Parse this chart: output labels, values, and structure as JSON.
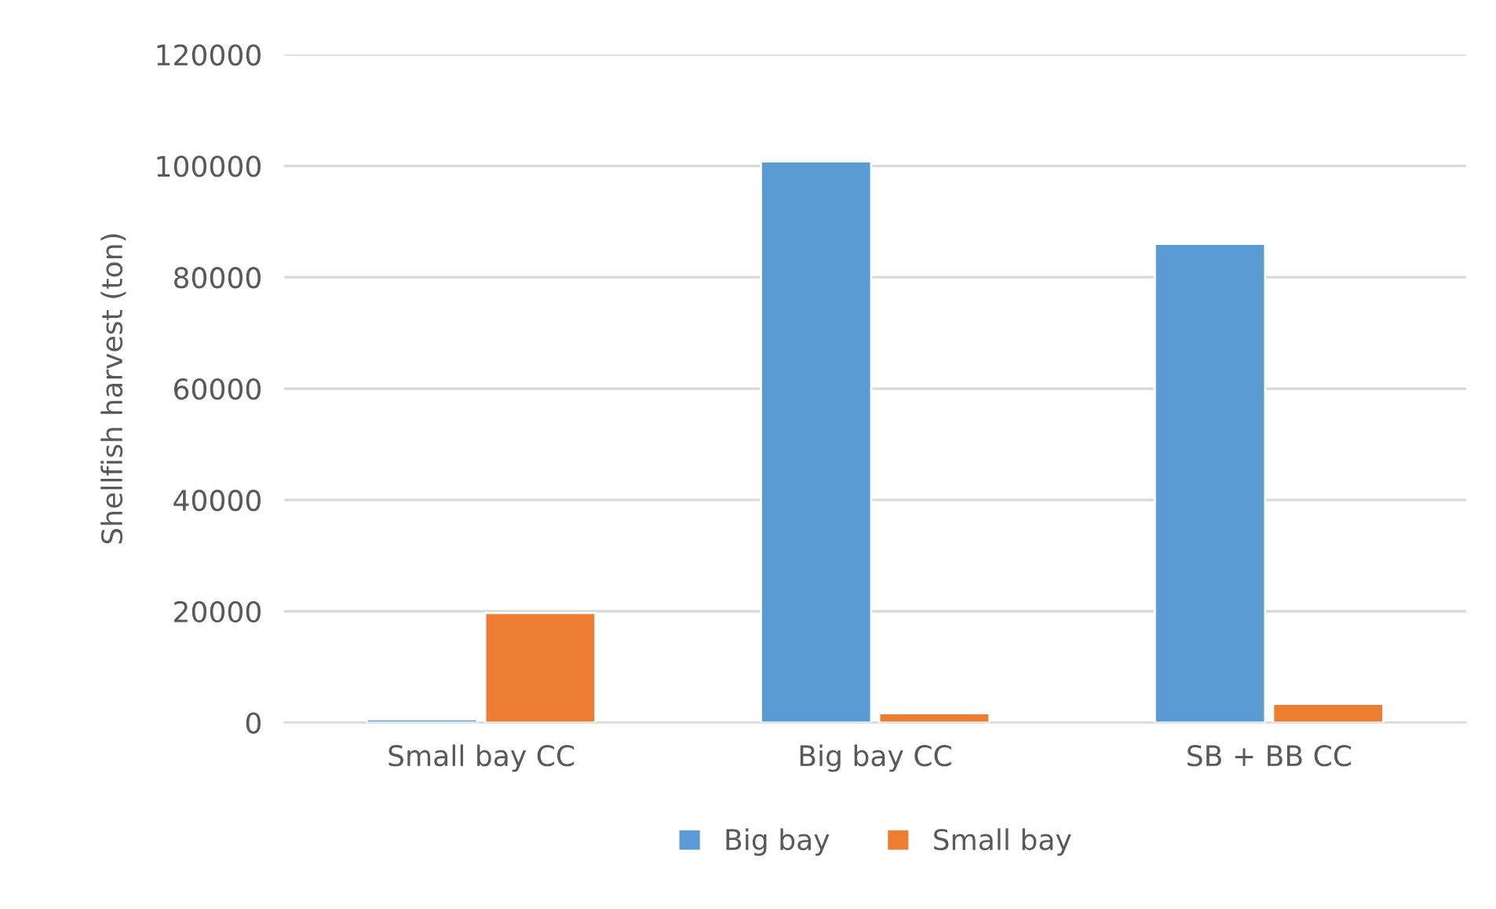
{
  "chart_data": {
    "type": "bar",
    "categories": [
      "Small bay CC",
      "Big bay CC",
      "SB + BB CC"
    ],
    "ylabel": "Shellfish harvest (ton)",
    "series": [
      {
        "name": "Big bay",
        "color": "#5b9bd5",
        "values": [
          600,
          100800,
          86000
        ]
      },
      {
        "name": "Small bay",
        "color": "#ed7d31",
        "values": [
          19700,
          1700,
          3400
        ]
      }
    ],
    "ylim": [
      0,
      120000
    ],
    "yticks": [
      0,
      20000,
      40000,
      60000,
      80000,
      100000,
      120000
    ],
    "grid": "y",
    "legend": "bottom"
  }
}
